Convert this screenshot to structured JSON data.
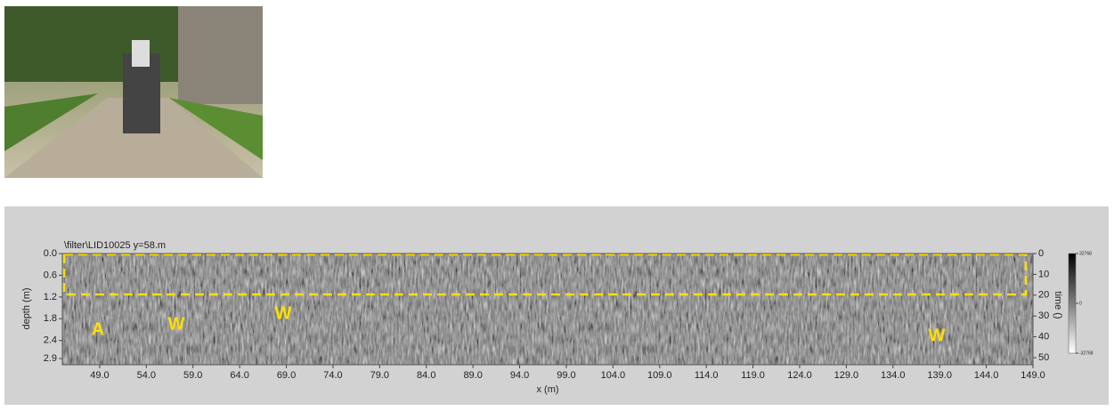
{
  "chart_data": {
    "type": "radargram",
    "title": "\\filter\\LID10025   y=58.m",
    "xlabel": "x (m)",
    "ylabel": "depth (m)",
    "y2label": "time ()",
    "xlim": [
      45,
      149
    ],
    "xticks": [
      {
        "value": 49,
        "label": "49.0"
      },
      {
        "value": 54,
        "label": "54.0"
      },
      {
        "value": 59,
        "label": "59.0"
      },
      {
        "value": 64,
        "label": "64.0"
      },
      {
        "value": 69,
        "label": "69.0"
      },
      {
        "value": 74,
        "label": "74.0"
      },
      {
        "value": 79,
        "label": "79.0"
      },
      {
        "value": 84,
        "label": "84.0"
      },
      {
        "value": 89,
        "label": "89.0"
      },
      {
        "value": 94,
        "label": "94.0"
      },
      {
        "value": 99,
        "label": "99.0"
      },
      {
        "value": 104,
        "label": "104.0"
      },
      {
        "value": 109,
        "label": "109.0"
      },
      {
        "value": 114,
        "label": "114.0"
      },
      {
        "value": 119,
        "label": "119.0"
      },
      {
        "value": 124,
        "label": "124.0"
      },
      {
        "value": 129,
        "label": "129.0"
      },
      {
        "value": 134,
        "label": "134.0"
      },
      {
        "value": 139,
        "label": "139.0"
      },
      {
        "value": 144,
        "label": "144.0"
      },
      {
        "value": 149,
        "label": "149.0"
      }
    ],
    "ylim": [
      0,
      3.07
    ],
    "yticks": [
      {
        "value": 0,
        "label": "0.0"
      },
      0.6,
      1.2,
      1.8,
      2.4,
      2.9
    ],
    "y2lim": [
      0,
      53.4
    ],
    "y2ticks": [
      0,
      10,
      20,
      30,
      40,
      50
    ],
    "colorbar": {
      "lim": [
        -32768,
        32768
      ],
      "ticks": [
        32768,
        0,
        -32768
      ]
    },
    "annotations": [
      "A",
      "W",
      "W",
      "W"
    ]
  }
}
